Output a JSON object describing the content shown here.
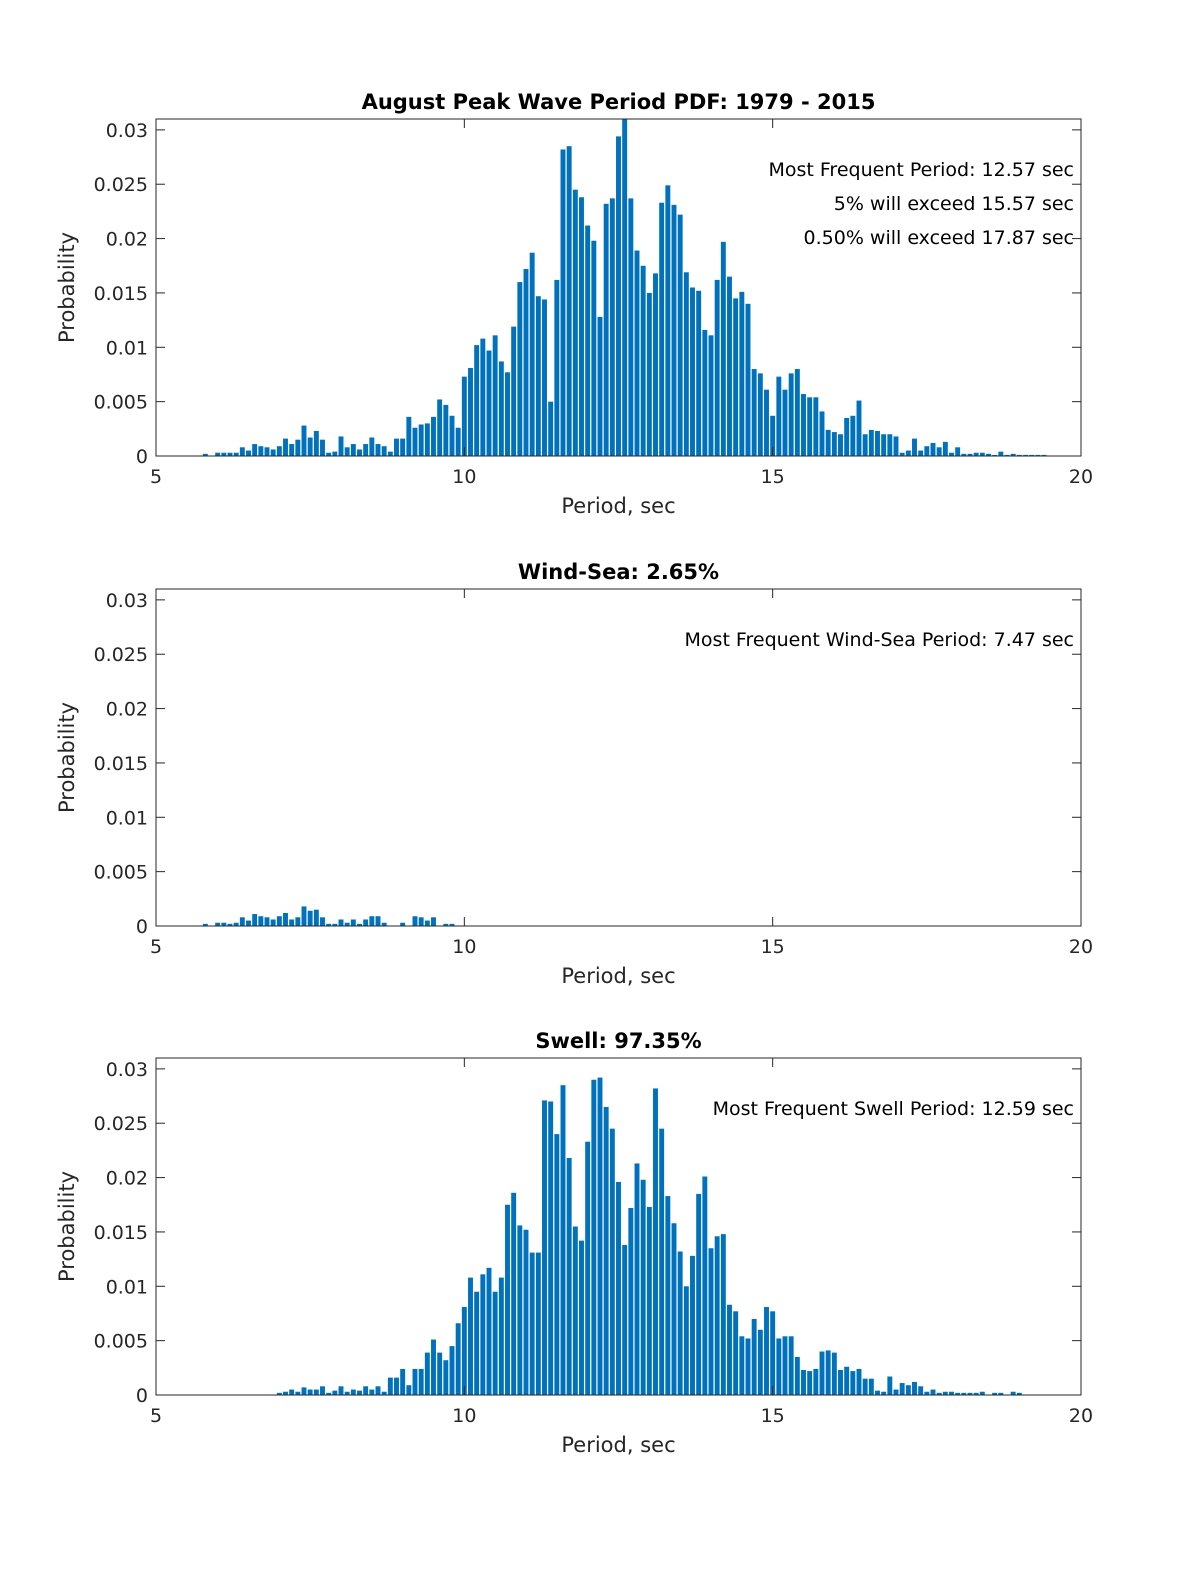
{
  "colors": {
    "bar": "#0072BD",
    "axis": "#262626",
    "background": "#ffffff"
  },
  "chart_data": [
    {
      "type": "bar",
      "title": "August Peak Wave Period PDF: 1979 - 2015",
      "xlabel": "Period, sec",
      "ylabel": "Probability",
      "xlim": [
        5,
        20
      ],
      "ylim": [
        0,
        0.031
      ],
      "xticks": [
        "5",
        "10",
        "15",
        "20"
      ],
      "xtick_values": [
        5,
        10,
        15,
        20
      ],
      "yticks": [
        "0",
        "0.005",
        "0.01",
        "0.015",
        "0.02",
        "0.025",
        "0.03"
      ],
      "ytick_values": [
        0,
        0.005,
        0.01,
        0.015,
        0.02,
        0.025,
        0.03
      ],
      "annotations": [
        "Most Frequent Period: 12.57 sec",
        "5% will exceed 15.57 sec",
        "0.50% will exceed 17.87 sec"
      ],
      "x_start": 5.8,
      "bin_width": 0.1,
      "values": [
        0.0002,
        0,
        0.0003,
        0.0003,
        0.0003,
        0.0003,
        0.0008,
        0.0005,
        0.0011,
        0.0009,
        0.0008,
        0.0006,
        0.0009,
        0.0016,
        0.0011,
        0.0015,
        0.0028,
        0.0017,
        0.0023,
        0.0015,
        0.0003,
        0.0004,
        0.0018,
        0.0008,
        0.0011,
        0.0006,
        0.0011,
        0.0017,
        0.0011,
        0.0009,
        0.0004,
        0.0016,
        0.0016,
        0.0036,
        0.0026,
        0.0029,
        0.003,
        0.0036,
        0.0052,
        0.0047,
        0.0037,
        0.0026,
        0.0073,
        0.0081,
        0.0102,
        0.0108,
        0.0097,
        0.0111,
        0.0087,
        0.0077,
        0.0119,
        0.016,
        0.0172,
        0.0187,
        0.0147,
        0.0144,
        0.005,
        0.0162,
        0.0282,
        0.0285,
        0.0245,
        0.0238,
        0.0212,
        0.0198,
        0.0128,
        0.0232,
        0.0237,
        0.0294,
        0.0313,
        0.0237,
        0.0189,
        0.0175,
        0.015,
        0.0168,
        0.0233,
        0.0249,
        0.0231,
        0.0222,
        0.0169,
        0.0155,
        0.0152,
        0.0116,
        0.0111,
        0.0162,
        0.0197,
        0.0165,
        0.0145,
        0.0151,
        0.014,
        0.008,
        0.0076,
        0.0061,
        0.0037,
        0.0073,
        0.0061,
        0.0076,
        0.008,
        0.0057,
        0.0054,
        0.0054,
        0.0041,
        0.0024,
        0.0022,
        0.002,
        0.0035,
        0.0037,
        0.0051,
        0.002,
        0.0024,
        0.0023,
        0.002,
        0.002,
        0.0018,
        0.0003,
        0.0005,
        0.0016,
        0.0005,
        0.0009,
        0.0012,
        0.0008,
        0.0013,
        0.0003,
        0.0008,
        0.0002,
        0.0002,
        0.0003,
        0.0003,
        0.0002,
        0.0001,
        0.0004,
        0.0001,
        0.0002,
        0.0001,
        0.0001,
        0.0001,
        0.0001,
        0.0001
      ]
    },
    {
      "type": "bar",
      "title": "Wind-Sea: 2.65%",
      "xlabel": "Period, sec",
      "ylabel": "Probability",
      "xlim": [
        5,
        20
      ],
      "ylim": [
        0,
        0.031
      ],
      "xticks": [
        "5",
        "10",
        "15",
        "20"
      ],
      "xtick_values": [
        5,
        10,
        15,
        20
      ],
      "yticks": [
        "0",
        "0.005",
        "0.01",
        "0.015",
        "0.02",
        "0.025",
        "0.03"
      ],
      "ytick_values": [
        0,
        0.005,
        0.01,
        0.015,
        0.02,
        0.025,
        0.03
      ],
      "annotations": [
        "Most Frequent Wind-Sea Period: 7.47 sec"
      ],
      "x_start": 5.8,
      "bin_width": 0.1,
      "values": [
        0.0002,
        0,
        0.0003,
        0.0003,
        0.0002,
        0.0003,
        0.0008,
        0.0005,
        0.0011,
        0.0009,
        0.0008,
        0.0006,
        0.0009,
        0.0012,
        0.0006,
        0.0008,
        0.0018,
        0.0014,
        0.0015,
        0.0008,
        0.0002,
        0.0002,
        0.0006,
        0.0003,
        0.0006,
        0.0002,
        0.0006,
        0.0009,
        0.0009,
        0.0003,
        0,
        0,
        0.0003,
        0,
        0.0009,
        0.0008,
        0.0005,
        0.0008,
        0,
        0.0002,
        0.0002
      ]
    },
    {
      "type": "bar",
      "title": "Swell: 97.35%",
      "xlabel": "Period, sec",
      "ylabel": "Probability",
      "xlim": [
        5,
        20
      ],
      "ylim": [
        0,
        0.031
      ],
      "xticks": [
        "5",
        "10",
        "15",
        "20"
      ],
      "xtick_values": [
        5,
        10,
        15,
        20
      ],
      "yticks": [
        "0",
        "0.005",
        "0.01",
        "0.015",
        "0.02",
        "0.025",
        "0.03"
      ],
      "ytick_values": [
        0,
        0.005,
        0.01,
        0.015,
        0.02,
        0.025,
        0.03
      ],
      "annotations": [
        "Most Frequent Swell Period: 12.59 sec"
      ],
      "x_start": 7.0,
      "bin_width": 0.1,
      "values": [
        0.0002,
        0.0003,
        0.0005,
        0.0003,
        0.0007,
        0.0005,
        0.0005,
        0.0008,
        0.0002,
        0.0004,
        0.0008,
        0.0003,
        0.0005,
        0.0004,
        0.0008,
        0.0005,
        0.0008,
        0.0003,
        0.0016,
        0.0016,
        0.0024,
        0.0009,
        0.0024,
        0.0024,
        0.0039,
        0.0051,
        0.0039,
        0.0032,
        0.0045,
        0.0066,
        0.0081,
        0.0108,
        0.0095,
        0.0111,
        0.0117,
        0.0095,
        0.0108,
        0.0175,
        0.0186,
        0.0156,
        0.0152,
        0.0131,
        0.0131,
        0.0271,
        0.027,
        0.024,
        0.0285,
        0.0218,
        0.0155,
        0.0142,
        0.0233,
        0.029,
        0.0292,
        0.0265,
        0.0245,
        0.0196,
        0.0138,
        0.0172,
        0.0213,
        0.0198,
        0.0173,
        0.0282,
        0.0245,
        0.0183,
        0.0158,
        0.0132,
        0.01,
        0.0128,
        0.0185,
        0.0201,
        0.0135,
        0.0146,
        0.0148,
        0.0083,
        0.0077,
        0.0054,
        0.0052,
        0.007,
        0.006,
        0.0081,
        0.0077,
        0.0052,
        0.0054,
        0.0054,
        0.0035,
        0.0023,
        0.0022,
        0.0024,
        0.004,
        0.0041,
        0.0039,
        0.0023,
        0.0026,
        0.0022,
        0.0024,
        0.0015,
        0.0015,
        0.0004,
        0.0003,
        0.0017,
        0.0005,
        0.0011,
        0.0009,
        0.0012,
        0.0008,
        0.0003,
        0.0005,
        0.0002,
        0.0003,
        0.0003,
        0.0002,
        0.0002,
        0.0002,
        0.0002,
        0.0003,
        0,
        0.0002,
        0.0002,
        0,
        0.0003,
        0.0002
      ]
    }
  ]
}
